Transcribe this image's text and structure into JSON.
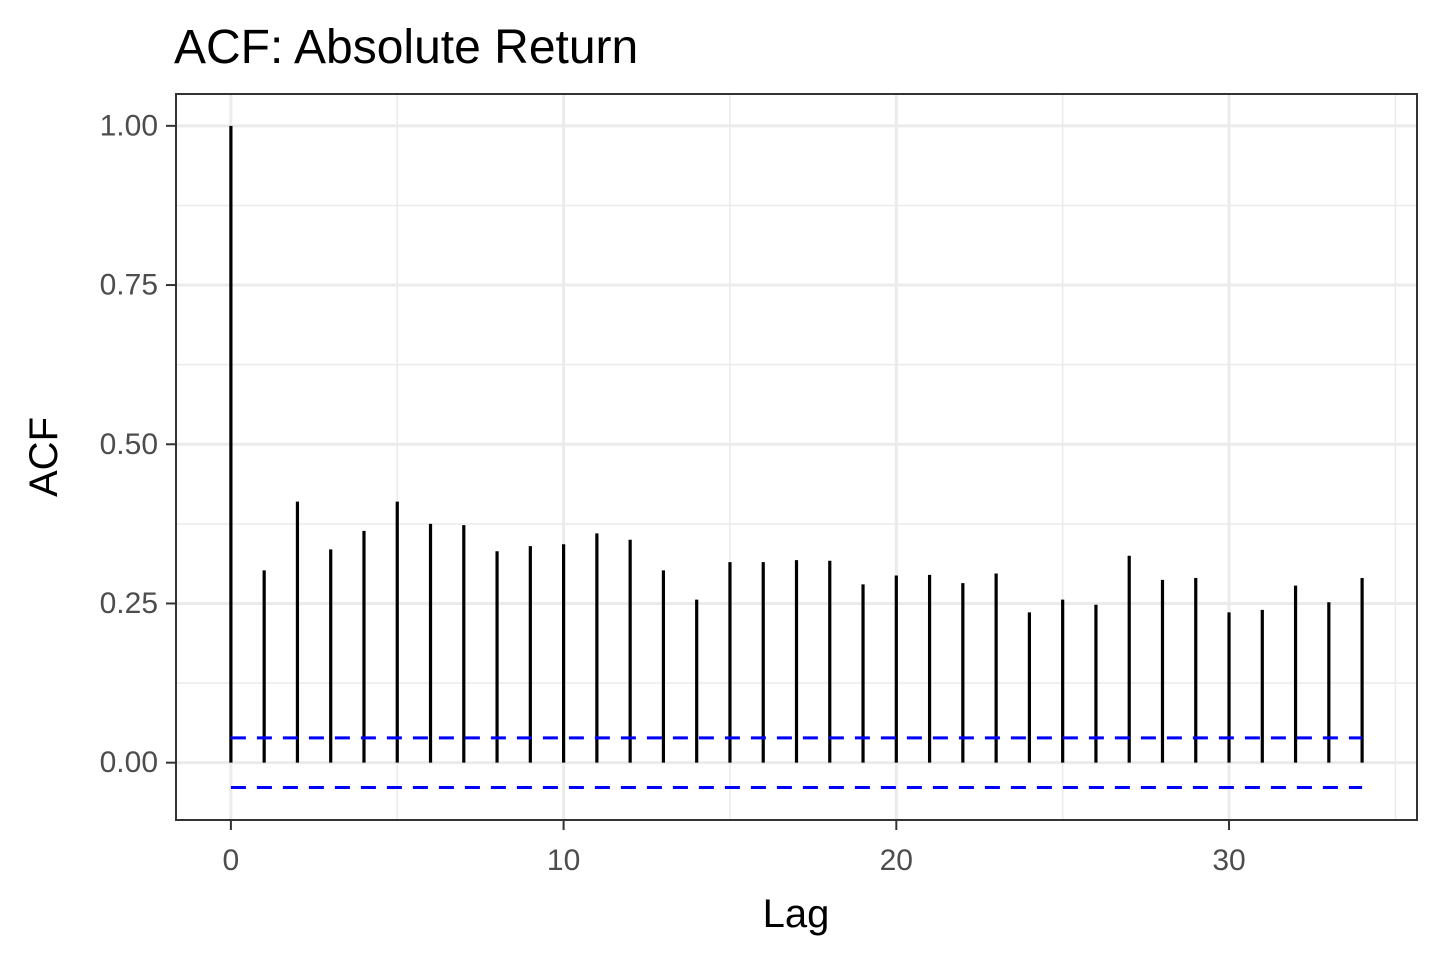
{
  "chart_data": {
    "type": "bar",
    "title": "ACF: Absolute Return",
    "xlabel": "Lag",
    "ylabel": "ACF",
    "xlim": [
      -1.65,
      35.65
    ],
    "ylim": [
      -0.09,
      1.05
    ],
    "x_ticks": [
      0,
      10,
      20,
      30
    ],
    "x_tick_labels": [
      "0",
      "10",
      "20",
      "30"
    ],
    "y_ticks": [
      0,
      0.25,
      0.5,
      0.75,
      1.0
    ],
    "y_tick_labels": [
      "0.00",
      "0.25",
      "0.50",
      "0.75",
      "1.00"
    ],
    "x_minor_ticks": [
      5,
      15,
      25,
      35
    ],
    "y_minor_ticks": [
      0.125,
      0.375,
      0.625,
      0.875
    ],
    "grid": true,
    "series": [
      {
        "lags": [
          0,
          1,
          2,
          3,
          4,
          5,
          6,
          7,
          8,
          9,
          10,
          11,
          12,
          13,
          14,
          15,
          16,
          17,
          18,
          19,
          20,
          21,
          22,
          23,
          24,
          25,
          26,
          27,
          28,
          29,
          30,
          31,
          32,
          33,
          34
        ],
        "values": [
          1.0,
          0.302,
          0.41,
          0.335,
          0.364,
          0.41,
          0.375,
          0.373,
          0.332,
          0.34,
          0.343,
          0.36,
          0.35,
          0.302,
          0.256,
          0.315,
          0.315,
          0.318,
          0.317,
          0.28,
          0.294,
          0.295,
          0.282,
          0.297,
          0.236,
          0.256,
          0.248,
          0.325,
          0.287,
          0.29,
          0.236,
          0.24,
          0.278,
          0.252,
          0.29
        ],
        "color": "#000000"
      }
    ],
    "confidence_bounds": {
      "upper": 0.039,
      "lower": -0.039,
      "color": "#0000ff",
      "style": "dashed"
    }
  }
}
